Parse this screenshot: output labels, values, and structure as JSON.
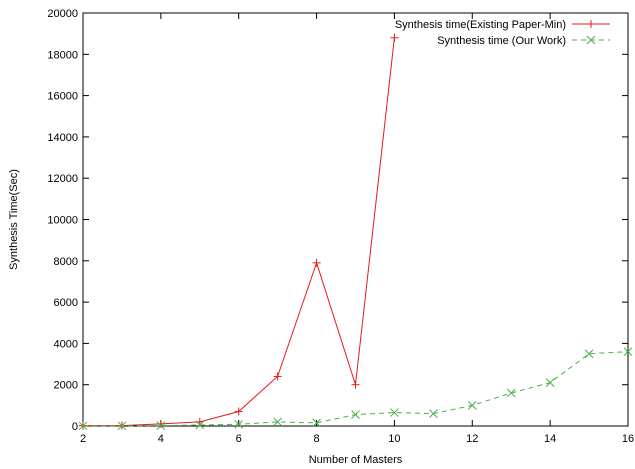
{
  "chart_data": {
    "type": "line",
    "title": "",
    "xlabel": "Number of Masters",
    "ylabel": "Synthesis Time(Sec)",
    "xlim": [
      2,
      16
    ],
    "ylim": [
      0,
      20000
    ],
    "x_ticks": [
      2,
      4,
      6,
      8,
      10,
      12,
      14,
      16
    ],
    "y_ticks": [
      0,
      2000,
      4000,
      6000,
      8000,
      10000,
      12000,
      14000,
      16000,
      18000,
      20000
    ],
    "grid": false,
    "legend_position": "top-right",
    "series": [
      {
        "name": "Synthesis time(Existing Paper-Min)",
        "color": "#e41a1c",
        "marker": "plus",
        "dash": "solid",
        "x": [
          2,
          3,
          4,
          5,
          6,
          7,
          8,
          9,
          10
        ],
        "y": [
          20,
          20,
          100,
          200,
          700,
          2400,
          7900,
          2000,
          18800
        ]
      },
      {
        "name": "Synthesis time (Our Work)",
        "color": "#4daf4a",
        "marker": "cross",
        "dash": "dashed",
        "x": [
          2,
          3,
          4,
          5,
          6,
          7,
          8,
          9,
          10,
          11,
          12,
          13,
          14,
          15,
          16
        ],
        "y": [
          10,
          10,
          20,
          50,
          80,
          200,
          150,
          550,
          650,
          600,
          1000,
          1600,
          2100,
          3500,
          3600
        ]
      }
    ]
  }
}
